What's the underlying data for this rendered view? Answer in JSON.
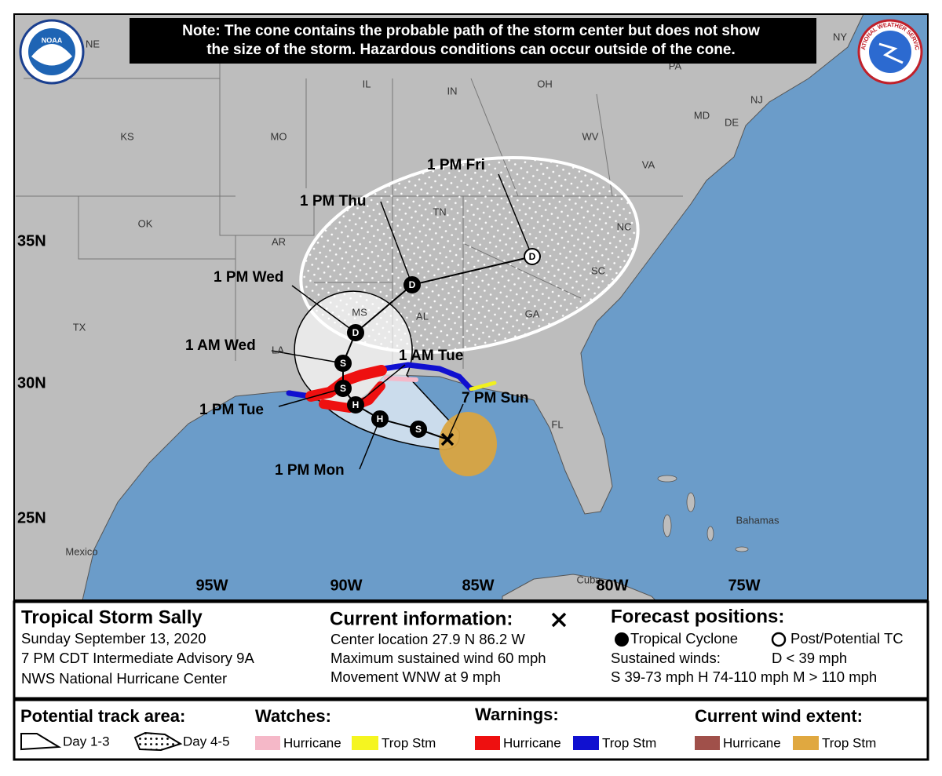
{
  "note": [
    "Note: The cone contains the probable path of the storm center but does not show",
    "the size of the storm. Hazardous conditions can occur outside of the cone."
  ],
  "logos": {
    "noaa": "NOAA",
    "nws": "NATIONAL WEATHER SERVICE"
  },
  "map": {
    "region_labels": [
      "NE",
      "IL",
      "IN",
      "OH",
      "PA",
      "NY",
      "NJ",
      "MD",
      "DE",
      "KS",
      "MO",
      "WV",
      "VA",
      "TN",
      "NC",
      "OK",
      "AR",
      "SC",
      "GA",
      "AL",
      "MS",
      "LA",
      "TX",
      "FL",
      "Mexico",
      "Bahamas",
      "Cuba"
    ],
    "latitude_labels": [
      "35N",
      "30N",
      "25N"
    ],
    "longitude_labels": [
      "95W",
      "90W",
      "85W",
      "80W",
      "75W"
    ],
    "forecast_points": [
      {
        "symbol": "S",
        "filled": true
      },
      {
        "symbol": "H",
        "filled": true
      },
      {
        "symbol": "H",
        "filled": true
      },
      {
        "symbol": "S",
        "filled": true
      },
      {
        "symbol": "S",
        "filled": true
      },
      {
        "symbol": "D",
        "filled": true
      },
      {
        "symbol": "D",
        "filled": true
      },
      {
        "symbol": "D",
        "filled": false
      }
    ],
    "time_labels": [
      "1 PM Fri",
      "1 PM Thu",
      "1 PM Wed",
      "1 AM Wed",
      "1 AM Tue",
      "1 PM Tue",
      "7 PM Sun",
      "1 PM Mon"
    ]
  },
  "storm": {
    "name": "Tropical Storm Sally",
    "lines": [
      "Sunday September 13, 2020",
      "7 PM CDT Intermediate Advisory 9A",
      "NWS National Hurricane Center"
    ]
  },
  "current": {
    "title": "Current information:",
    "lines": [
      "Center location 27.9 N 86.2 W",
      "Maximum sustained wind 60 mph",
      "Movement WNW at 9 mph"
    ]
  },
  "forecast_positions": {
    "title": "Forecast positions:",
    "tropical_cyclone": "Tropical Cyclone",
    "post_potential": "Post/Potential TC",
    "sustained_winds": "Sustained winds:",
    "d_range": "D < 39 mph",
    "scale": "S 39-73 mph  H 74-110 mph  M > 110 mph"
  },
  "legend": {
    "track_area": {
      "title": "Potential track area:",
      "items": [
        "Day 1-3",
        "Day 4-5"
      ]
    },
    "watches": {
      "title": "Watches:",
      "items": [
        "Hurricane",
        "Trop Stm"
      ]
    },
    "warnings": {
      "title": "Warnings:",
      "items": [
        "Hurricane",
        "Trop Stm"
      ]
    },
    "wind_extent": {
      "title": "Current wind extent:",
      "items": [
        "Hurricane",
        "Trop Stm"
      ]
    }
  }
}
